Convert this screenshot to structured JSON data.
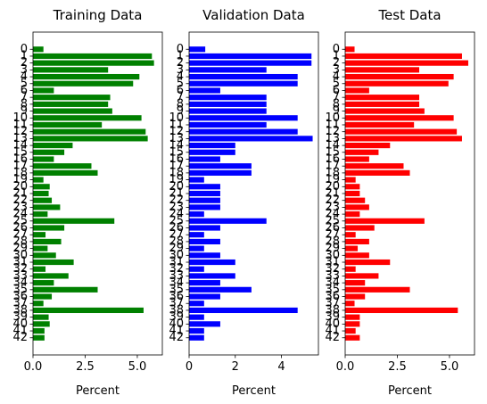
{
  "chart_data": [
    {
      "type": "bar",
      "orientation": "horizontal",
      "title": "Training Data",
      "xlabel": "Percent",
      "ylabel": "",
      "xlim": [
        0,
        6.2
      ],
      "xticks": [
        0,
        2.5,
        5
      ],
      "xtick_labels": [
        "0.0",
        "2.5",
        "5.0"
      ],
      "categories": [
        "0",
        "1",
        "2",
        "3",
        "4",
        "5",
        "6",
        "7",
        "8",
        "9",
        "10",
        "11",
        "12",
        "13",
        "14",
        "15",
        "16",
        "17",
        "18",
        "19",
        "20",
        "21",
        "22",
        "23",
        "24",
        "25",
        "26",
        "27",
        "28",
        "29",
        "30",
        "31",
        "32",
        "33",
        "34",
        "35",
        "36",
        "37",
        "38",
        "39",
        "40",
        "41",
        "42"
      ],
      "values": [
        0.5,
        5.7,
        5.8,
        3.6,
        5.1,
        4.8,
        1.0,
        3.7,
        3.6,
        3.8,
        5.2,
        3.3,
        5.4,
        5.5,
        1.9,
        1.5,
        1.0,
        2.8,
        3.1,
        0.5,
        0.8,
        0.75,
        0.9,
        1.3,
        0.7,
        3.9,
        1.5,
        0.6,
        1.35,
        0.7,
        1.1,
        1.95,
        0.6,
        1.7,
        1.0,
        3.1,
        0.9,
        0.5,
        5.3,
        0.75,
        0.8,
        0.55,
        0.55
      ],
      "color": "#008000"
    },
    {
      "type": "bar",
      "orientation": "horizontal",
      "title": "Validation Data",
      "xlabel": "Percent",
      "ylabel": "",
      "xlim": [
        0,
        5.6
      ],
      "xticks": [
        0,
        2,
        4
      ],
      "xtick_labels": [
        "0",
        "2",
        "4"
      ],
      "categories": [
        "0",
        "1",
        "2",
        "3",
        "4",
        "5",
        "6",
        "7",
        "8",
        "9",
        "10",
        "11",
        "12",
        "13",
        "14",
        "15",
        "16",
        "17",
        "18",
        "19",
        "20",
        "21",
        "22",
        "23",
        "24",
        "25",
        "26",
        "27",
        "28",
        "29",
        "30",
        "31",
        "32",
        "33",
        "34",
        "35",
        "36",
        "37",
        "38",
        "39",
        "40",
        "41",
        "42"
      ],
      "values": [
        0.7,
        5.3,
        5.3,
        3.35,
        4.7,
        4.7,
        1.35,
        3.35,
        3.35,
        3.35,
        4.7,
        3.35,
        4.7,
        5.35,
        2.0,
        2.0,
        1.35,
        2.7,
        2.7,
        0.65,
        1.35,
        1.35,
        1.35,
        1.35,
        0.65,
        3.35,
        1.35,
        0.65,
        1.35,
        0.65,
        1.35,
        2.0,
        0.65,
        2.0,
        1.35,
        2.7,
        1.35,
        0.65,
        4.7,
        0.65,
        1.35,
        0.65,
        0.65
      ],
      "color": "#0000ff"
    },
    {
      "type": "bar",
      "orientation": "horizontal",
      "title": "Test Data",
      "xlabel": "Percent",
      "ylabel": "",
      "xlim": [
        0,
        6.2
      ],
      "xticks": [
        0,
        2.5,
        5
      ],
      "xtick_labels": [
        "0.0",
        "2.5",
        "5.0"
      ],
      "categories": [
        "0",
        "1",
        "2",
        "3",
        "4",
        "5",
        "6",
        "7",
        "8",
        "9",
        "10",
        "11",
        "12",
        "13",
        "14",
        "15",
        "16",
        "17",
        "18",
        "19",
        "20",
        "21",
        "22",
        "23",
        "24",
        "25",
        "26",
        "27",
        "28",
        "29",
        "30",
        "31",
        "32",
        "33",
        "34",
        "35",
        "36",
        "37",
        "38",
        "39",
        "40",
        "41",
        "42"
      ],
      "values": [
        0.45,
        5.6,
        5.9,
        3.55,
        5.2,
        4.95,
        1.15,
        3.55,
        3.55,
        3.8,
        5.2,
        3.3,
        5.35,
        5.6,
        2.15,
        1.6,
        1.15,
        2.8,
        3.1,
        0.5,
        0.7,
        0.7,
        0.95,
        1.15,
        0.7,
        3.8,
        1.4,
        0.5,
        1.15,
        0.6,
        1.15,
        2.15,
        0.5,
        1.6,
        0.95,
        3.1,
        0.95,
        0.45,
        5.4,
        0.7,
        0.7,
        0.5,
        0.7
      ],
      "color": "#ff0000"
    }
  ]
}
